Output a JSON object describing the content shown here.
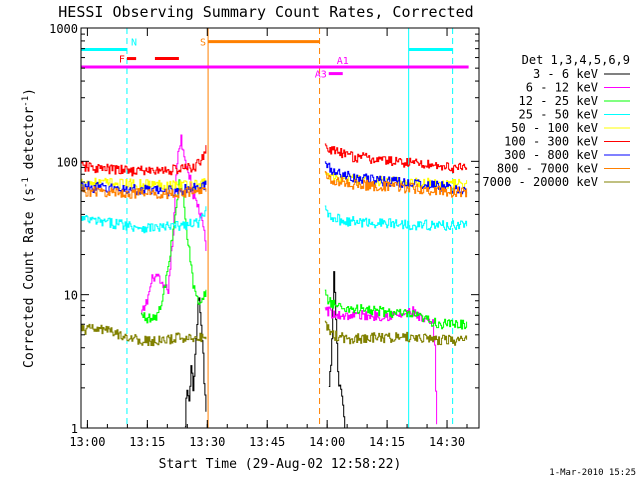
{
  "chart_data": {
    "type": "line",
    "title": "HESSI Observing Summary Count Rates, Corrected",
    "xlabel": "Start Time (29-Aug-02 12:58:22)",
    "ylabel_main": "Corrected Count Rate (s",
    "ylabel_sup1": "-1",
    "ylabel_mid": " detector",
    "ylabel_sup2": "-1",
    "ylabel_end": ")",
    "timestamp": "1-Mar-2010 15:25",
    "yscale": "log",
    "ylim": [
      1,
      1000
    ],
    "xlim": [
      "12:58:22",
      "14:38:00"
    ],
    "xticks": [
      {
        "label": "13:00",
        "min": 1.6
      },
      {
        "label": "13:15",
        "min": 16.6
      },
      {
        "label": "13:30",
        "min": 31.6
      },
      {
        "label": "13:45",
        "min": 46.6
      },
      {
        "label": "14:00",
        "min": 61.6
      },
      {
        "label": "14:15",
        "min": 76.6
      },
      {
        "label": "14:30",
        "min": 91.6
      }
    ],
    "yticks": [
      {
        "label": "1",
        "v": 1
      },
      {
        "label": "10",
        "v": 10
      },
      {
        "label": "100",
        "v": 100
      },
      {
        "label": "1000",
        "v": 1000
      }
    ],
    "legend_title": "Det 1,3,4,5,6,9",
    "legend_position": "right",
    "series": [
      {
        "name": "3 - 6 keV",
        "color": "#000000",
        "segments": [
          {
            "from": 26,
            "to": 31.4,
            "points": [
              [
                26,
                1
              ],
              [
                26.4,
                2
              ],
              [
                27,
                1.5
              ],
              [
                27.5,
                3
              ],
              [
                28,
                2
              ],
              [
                28.6,
                4
              ],
              [
                29,
                6
              ],
              [
                29.4,
                11
              ],
              [
                29.9,
                6
              ],
              [
                30.4,
                4
              ],
              [
                30.8,
                2
              ],
              [
                31.2,
                1.5
              ],
              [
                31.4,
                1
              ]
            ]
          },
          {
            "from": 62,
            "to": 66,
            "points": [
              [
                62,
                2
              ],
              [
                62.5,
                3
              ],
              [
                63.3,
                16
              ],
              [
                64,
                4
              ],
              [
                64.5,
                2
              ],
              [
                65,
                2
              ],
              [
                65.6,
                1.5
              ],
              [
                66,
                1
              ]
            ]
          }
        ]
      },
      {
        "name": "6 - 12 keV",
        "color": "#ff00ff",
        "segments": [
          {
            "from": 15,
            "to": 31.4,
            "points": [
              [
                15,
                7
              ],
              [
                16.5,
                9
              ],
              [
                18,
                14
              ],
              [
                19.4,
                13
              ],
              [
                20.5,
                11
              ],
              [
                21.8,
                11
              ],
              [
                23,
                30
              ],
              [
                24,
                100
              ],
              [
                25,
                150
              ],
              [
                26,
                100
              ],
              [
                27,
                80
              ],
              [
                28,
                55
              ],
              [
                29,
                48
              ],
              [
                30,
                38
              ],
              [
                30.8,
                28
              ],
              [
                31.4,
                20
              ]
            ]
          },
          {
            "from": 61,
            "to": 89,
            "points": [
              [
                61,
                8
              ],
              [
                63,
                7
              ],
              [
                70,
                7
              ],
              [
                80,
                7
              ],
              [
                83,
                7.5
              ],
              [
                85,
                6.5
              ],
              [
                88,
                6
              ],
              [
                88.5,
                4
              ],
              [
                89,
                1
              ]
            ]
          }
        ]
      },
      {
        "name": "12 - 25 keV",
        "color": "#00ff00",
        "segments": [
          {
            "from": 15,
            "to": 31.4,
            "points": [
              [
                15,
                7
              ],
              [
                18,
                6.5
              ],
              [
                20,
                8
              ],
              [
                22,
                18
              ],
              [
                23.5,
                40
              ],
              [
                24.5,
                70
              ],
              [
                25.5,
                55
              ],
              [
                26.5,
                28
              ],
              [
                28,
                12
              ],
              [
                29.5,
                8
              ],
              [
                30.5,
                9
              ],
              [
                31.4,
                12
              ]
            ]
          },
          {
            "from": 61,
            "to": 96.5,
            "points": [
              [
                61,
                10
              ],
              [
                62,
                9
              ],
              [
                65,
                8
              ],
              [
                75,
                7.5
              ],
              [
                83,
                7
              ],
              [
                90,
                6
              ],
              [
                96.5,
                6
              ]
            ]
          }
        ]
      },
      {
        "name": "25 - 50 keV",
        "color": "#00ffff",
        "segments": [
          {
            "from": 0,
            "to": 31.4,
            "points": [
              [
                0,
                37
              ],
              [
                5,
                35
              ],
              [
                10,
                34
              ],
              [
                15,
                32
              ],
              [
                20,
                32
              ],
              [
                25,
                33
              ],
              [
                28,
                34
              ],
              [
                30,
                36
              ],
              [
                31.4,
                44
              ]
            ]
          },
          {
            "from": 61,
            "to": 96.5,
            "points": [
              [
                61,
                45
              ],
              [
                62,
                40
              ],
              [
                65,
                36
              ],
              [
                70,
                35
              ],
              [
                80,
                34
              ],
              [
                90,
                33
              ],
              [
                96.5,
                34
              ]
            ]
          }
        ]
      },
      {
        "name": "50 - 100 keV",
        "color": "#ffff00",
        "segments": [
          {
            "from": 0,
            "to": 31.4,
            "points": [
              [
                0,
                70
              ],
              [
                10,
                68
              ],
              [
                20,
                67
              ],
              [
                25,
                67
              ],
              [
                30,
                68
              ],
              [
                31.4,
                70
              ]
            ]
          },
          {
            "from": 61,
            "to": 96.5,
            "points": [
              [
                61,
                80
              ],
              [
                65,
                74
              ],
              [
                70,
                72
              ],
              [
                80,
                70
              ],
              [
                90,
                68
              ],
              [
                96.5,
                67
              ]
            ]
          }
        ]
      },
      {
        "name": "100 - 300 keV",
        "color": "#ff0000",
        "segments": [
          {
            "from": 0,
            "to": 31.4,
            "points": [
              [
                0,
                92
              ],
              [
                5,
                88
              ],
              [
                10,
                86
              ],
              [
                15,
                85
              ],
              [
                20,
                85
              ],
              [
                25,
                88
              ],
              [
                28,
                90
              ],
              [
                30,
                100
              ],
              [
                31.4,
                135
              ]
            ]
          },
          {
            "from": 61,
            "to": 96.5,
            "points": [
              [
                61,
                130
              ],
              [
                63,
                120
              ],
              [
                67,
                110
              ],
              [
                72,
                105
              ],
              [
                78,
                100
              ],
              [
                85,
                97
              ],
              [
                90,
                92
              ],
              [
                96.5,
                88
              ]
            ]
          }
        ]
      },
      {
        "name": "300 - 800 keV",
        "color": "#0000ff",
        "segments": [
          {
            "from": 0,
            "to": 31.4,
            "points": [
              [
                0,
                65
              ],
              [
                10,
                62
              ],
              [
                20,
                60
              ],
              [
                25,
                61
              ],
              [
                30,
                64
              ],
              [
                31.4,
                68
              ]
            ]
          },
          {
            "from": 61,
            "to": 96.5,
            "points": [
              [
                61,
                95
              ],
              [
                63,
                85
              ],
              [
                67,
                78
              ],
              [
                72,
                73
              ],
              [
                80,
                70
              ],
              [
                90,
                65
              ],
              [
                96.5,
                60
              ]
            ]
          }
        ]
      },
      {
        "name": "800 - 7000 keV",
        "color": "#ff8000",
        "segments": [
          {
            "from": 0,
            "to": 31.4,
            "points": [
              [
                0,
                60
              ],
              [
                10,
                58
              ],
              [
                20,
                57
              ],
              [
                25,
                58
              ],
              [
                30,
                60
              ],
              [
                31.4,
                62
              ]
            ]
          },
          {
            "from": 61,
            "to": 96.5,
            "points": [
              [
                61,
                80
              ],
              [
                63,
                72
              ],
              [
                67,
                68
              ],
              [
                72,
                66
              ],
              [
                80,
                64
              ],
              [
                90,
                60
              ],
              [
                96.5,
                58
              ]
            ]
          }
        ]
      },
      {
        "name": "7000 - 20000 keV",
        "color": "#808000",
        "segments": [
          {
            "from": 0,
            "to": 31.4,
            "points": [
              [
                0,
                5.5
              ],
              [
                5,
                5.5
              ],
              [
                10,
                5
              ],
              [
                15,
                4.5
              ],
              [
                20,
                4.5
              ],
              [
                25,
                4.8
              ],
              [
                30,
                4.8
              ],
              [
                31.4,
                5
              ]
            ]
          },
          {
            "from": 61,
            "to": 96.5,
            "points": [
              [
                61,
                6
              ],
              [
                63,
                5
              ],
              [
                67,
                4.7
              ],
              [
                75,
                4.8
              ],
              [
                85,
                4.8
              ],
              [
                90,
                4.6
              ],
              [
                96.5,
                4.5
              ]
            ]
          }
        ]
      }
    ],
    "vertical_lines": [
      {
        "min": 0.0,
        "color": "#00ffff",
        "style": "solid"
      },
      {
        "min": 11.5,
        "color": "#00ffff",
        "style": "dashed"
      },
      {
        "min": 31.8,
        "color": "#ff8000",
        "style": "solid"
      },
      {
        "min": 59.7,
        "color": "#ff8000",
        "style": "dashed"
      },
      {
        "min": 82.0,
        "color": "#00ffff",
        "style": "solid"
      },
      {
        "min": 93.0,
        "color": "#00ffff",
        "style": "dashed"
      }
    ],
    "flag_bars": [
      {
        "label": "N",
        "color": "#00ffff",
        "from": 0.0,
        "to": 11.5,
        "v": 690
      },
      {
        "label": "",
        "color": "#00ffff",
        "from": 82.0,
        "to": 93.0,
        "v": 690
      },
      {
        "label": "S",
        "color": "#ff8000",
        "from": 31.8,
        "to": 59.7,
        "v": 790
      },
      {
        "label": "F",
        "color": "#ff0000",
        "from": 11.5,
        "to": 13.8,
        "v": 590
      },
      {
        "label": "",
        "color": "#ff0000",
        "from": 18.5,
        "to": 24.5,
        "v": 590
      },
      {
        "label": "A1",
        "color": "#ff00ff",
        "from": 0.0,
        "to": 97.0,
        "v": 510
      },
      {
        "label": "A3",
        "color": "#ff00ff",
        "from": 62.0,
        "to": 65.5,
        "v": 455
      }
    ]
  }
}
